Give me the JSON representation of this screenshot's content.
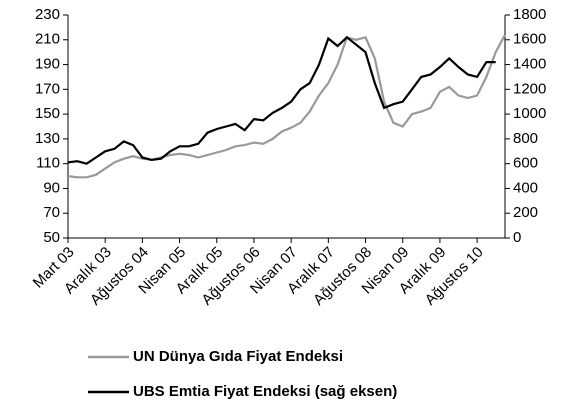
{
  "chart_data": {
    "type": "line",
    "categories": [
      "Mart 03",
      null,
      null,
      null,
      "Aralık 03",
      null,
      null,
      null,
      "Ağustos 04",
      null,
      null,
      null,
      "Nisan 05",
      null,
      null,
      null,
      "Aralık 05",
      null,
      null,
      null,
      "Ağustos 06",
      null,
      null,
      null,
      "Nisan 07",
      null,
      null,
      null,
      "Aralık 07",
      null,
      null,
      null,
      "Ağustos 08",
      null,
      null,
      null,
      "Nisan 09",
      null,
      null,
      null,
      "Aralık 09",
      null,
      null,
      null,
      "Ağustos 10",
      null,
      null,
      null
    ],
    "series": [
      {
        "name": "UN Dünya Gıda Fiyat Endeksi",
        "color": "#999999",
        "values": [
          100,
          99,
          99,
          101,
          106,
          111,
          114,
          116,
          114,
          113,
          115,
          117,
          118,
          117,
          115,
          117,
          119,
          121,
          124,
          125,
          127,
          126,
          130,
          136,
          139,
          143,
          152,
          165,
          175,
          190,
          212,
          210,
          212,
          195,
          160,
          143,
          140,
          150,
          152,
          155,
          168,
          172,
          165,
          163,
          165,
          180,
          200,
          214
        ]
      },
      {
        "name": "UBS Emtia Fiyat Endeksi (sağ eksen)",
        "color": "#000000",
        "axis": "y2",
        "values": [
          610,
          620,
          600,
          650,
          700,
          720,
          780,
          750,
          650,
          630,
          640,
          700,
          740,
          740,
          760,
          850,
          880,
          900,
          920,
          870,
          960,
          950,
          1010,
          1050,
          1100,
          1200,
          1250,
          1400,
          1610,
          1550,
          1620,
          1560,
          1500,
          1250,
          1050,
          1080,
          1100,
          1200,
          1300,
          1320,
          1380,
          1450,
          1380,
          1320,
          1300,
          1420,
          1420,
          null
        ]
      }
    ],
    "ylim": [
      50,
      230
    ],
    "yticks": [
      50,
      70,
      90,
      110,
      130,
      150,
      170,
      190,
      210,
      230
    ],
    "y2lim": [
      0,
      1800
    ],
    "y2ticks": [
      0,
      200,
      400,
      600,
      800,
      1000,
      1200,
      1400,
      1600,
      1800
    ],
    "grid": false
  }
}
